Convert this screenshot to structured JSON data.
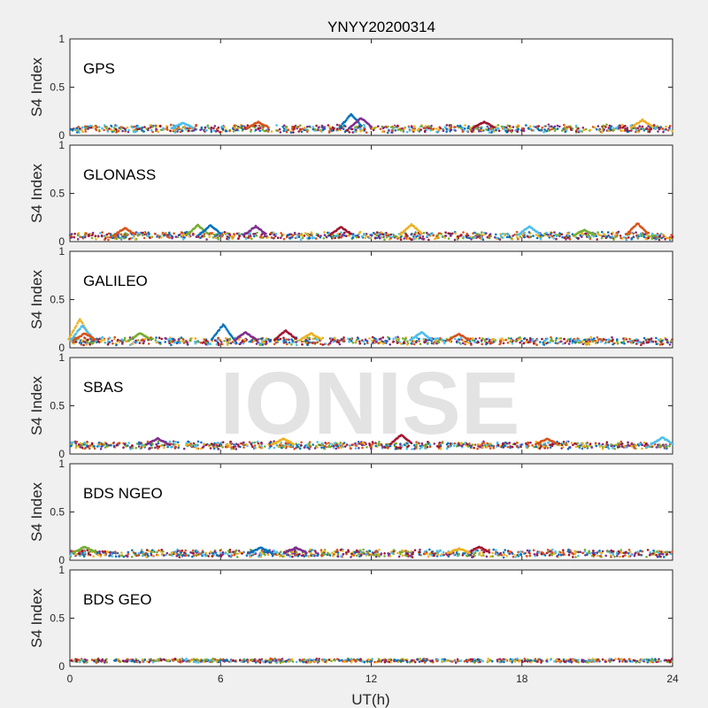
{
  "chart_data": {
    "type": "scatter",
    "title": "YNYY20200314",
    "xlabel": "UT(h)",
    "ylabel": "S4 Index",
    "xlim": [
      0,
      24
    ],
    "ylim": [
      0,
      1
    ],
    "xticks": [
      "0",
      "6",
      "12",
      "18",
      "24"
    ],
    "yticks": [
      "0",
      "0.5",
      "1"
    ],
    "grid": false,
    "series_colors": [
      "#0072BD",
      "#D95319",
      "#EDB120",
      "#7E2F8E",
      "#77AC30",
      "#4DBEEE",
      "#A2142F"
    ],
    "panels": [
      {
        "name": "GPS",
        "baseline": 0.07,
        "noise": 0.03,
        "features": [
          {
            "x": 11.2,
            "y": 0.22
          },
          {
            "x": 11.6,
            "y": 0.18
          },
          {
            "x": 16.5,
            "y": 0.14
          },
          {
            "x": 22.8,
            "y": 0.16
          },
          {
            "x": 4.5,
            "y": 0.13
          },
          {
            "x": 7.5,
            "y": 0.14
          }
        ]
      },
      {
        "name": "GLONASS",
        "baseline": 0.06,
        "noise": 0.03,
        "features": [
          {
            "x": 2.2,
            "y": 0.14
          },
          {
            "x": 5.1,
            "y": 0.17
          },
          {
            "x": 5.6,
            "y": 0.17
          },
          {
            "x": 7.4,
            "y": 0.16
          },
          {
            "x": 10.8,
            "y": 0.15
          },
          {
            "x": 13.6,
            "y": 0.18
          },
          {
            "x": 18.3,
            "y": 0.16
          },
          {
            "x": 22.6,
            "y": 0.19
          },
          {
            "x": 20.5,
            "y": 0.12
          }
        ]
      },
      {
        "name": "GALILEO",
        "baseline": 0.07,
        "noise": 0.03,
        "features": [
          {
            "x": 0.4,
            "y": 0.3
          },
          {
            "x": 0.5,
            "y": 0.23
          },
          {
            "x": 0.6,
            "y": 0.15
          },
          {
            "x": 2.8,
            "y": 0.15
          },
          {
            "x": 6.1,
            "y": 0.24
          },
          {
            "x": 7.0,
            "y": 0.16
          },
          {
            "x": 8.6,
            "y": 0.18
          },
          {
            "x": 9.6,
            "y": 0.15
          },
          {
            "x": 14.0,
            "y": 0.16
          },
          {
            "x": 15.5,
            "y": 0.14
          }
        ]
      },
      {
        "name": "SBAS",
        "baseline": 0.09,
        "noise": 0.03,
        "features": [
          {
            "x": 3.5,
            "y": 0.16
          },
          {
            "x": 13.2,
            "y": 0.2
          },
          {
            "x": 8.5,
            "y": 0.16
          },
          {
            "x": 23.6,
            "y": 0.17
          },
          {
            "x": 19.0,
            "y": 0.16
          }
        ]
      },
      {
        "name": "BDS NGEO",
        "baseline": 0.07,
        "noise": 0.03,
        "features": [
          {
            "x": 0.6,
            "y": 0.14
          },
          {
            "x": 7.6,
            "y": 0.13
          },
          {
            "x": 9.0,
            "y": 0.13
          },
          {
            "x": 16.3,
            "y": 0.14
          },
          {
            "x": 15.5,
            "y": 0.12
          }
        ]
      },
      {
        "name": "BDS GEO",
        "baseline": 0.06,
        "noise": 0.015,
        "features": []
      }
    ]
  },
  "watermark": "IONISE"
}
